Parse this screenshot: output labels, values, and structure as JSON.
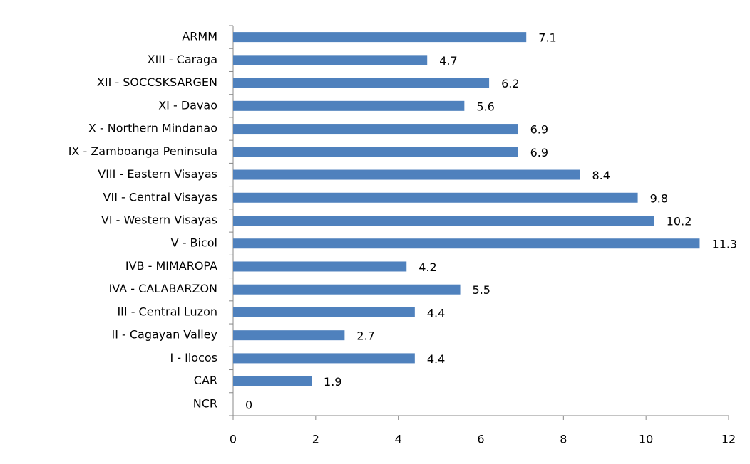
{
  "chart_data": {
    "type": "barh",
    "categories": [
      "ARMM",
      "XIII - Caraga",
      "XII - SOCCSKSARGEN",
      "XI - Davao",
      "X - Northern Mindanao",
      "IX - Zamboanga Peninsula",
      "VIII - Eastern Visayas",
      "VII - Central Visayas",
      "VI - Western Visayas",
      "V - Bicol",
      "IVB - MIMAROPA",
      "IVA - CALABARZON",
      "III - Central Luzon",
      "II - Cagayan Valley",
      "I - Ilocos",
      "CAR",
      "NCR"
    ],
    "values": [
      7.1,
      4.7,
      6.2,
      5.6,
      6.9,
      6.9,
      8.4,
      9.8,
      10.2,
      11.3,
      4.2,
      5.5,
      4.4,
      2.7,
      4.4,
      1.9,
      0
    ],
    "color": "#4f81bd",
    "xlim": [
      0,
      12
    ],
    "xticks": [
      0,
      2,
      4,
      6,
      8,
      10,
      12
    ],
    "grid": false
  }
}
